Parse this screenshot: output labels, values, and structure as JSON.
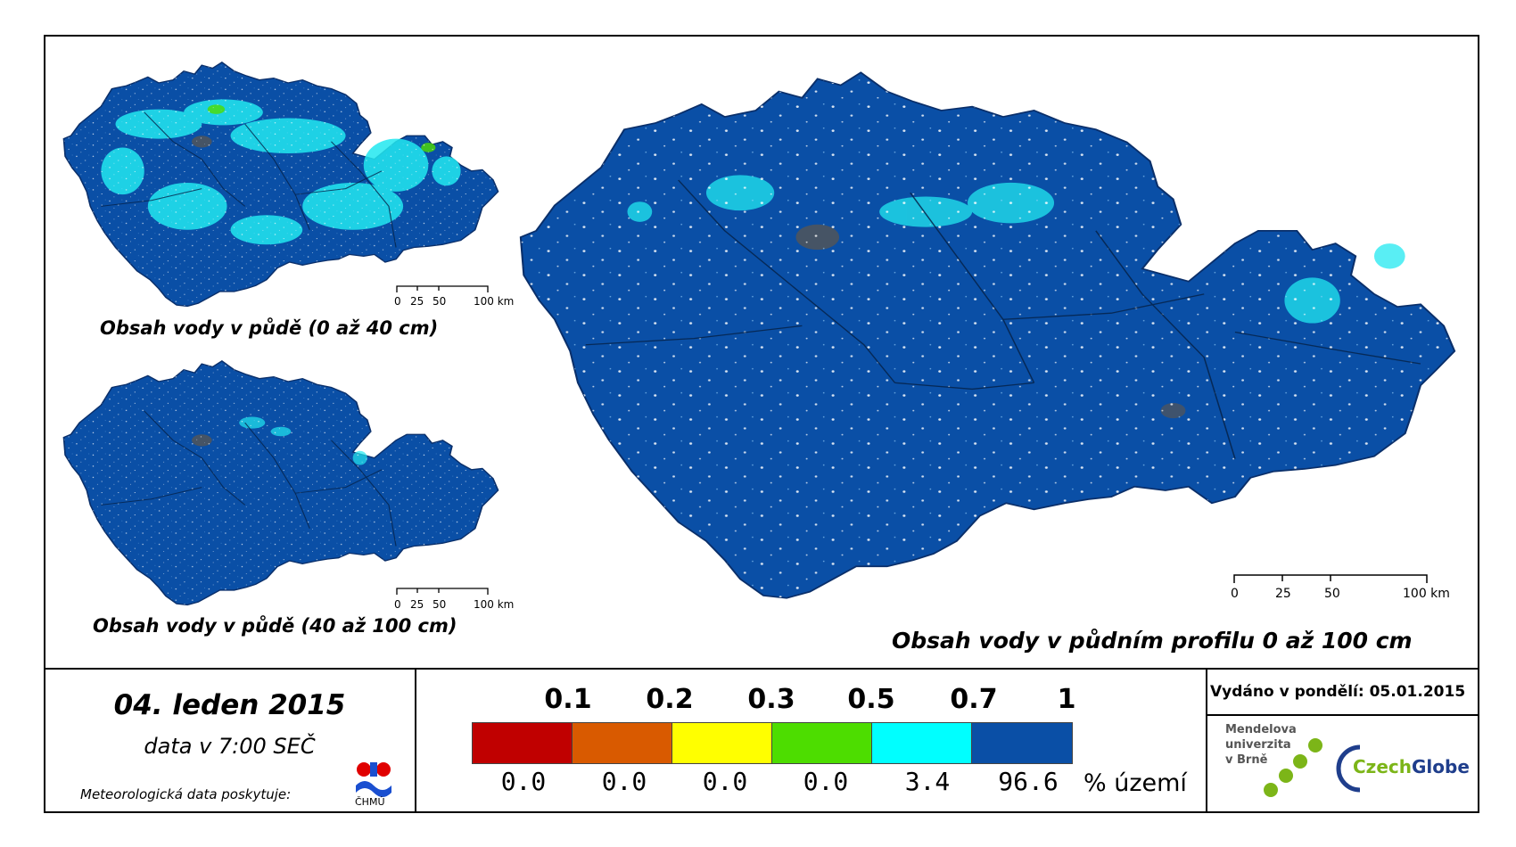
{
  "maps": {
    "top_small": {
      "title": "Obsah vody v půdě (0 až 40 cm)"
    },
    "bottom_small": {
      "title": "Obsah vody v půdě (40 až 100 cm)"
    },
    "main": {
      "title": "Obsah vody v půdním profilu 0 až 100 cm"
    }
  },
  "scale_bar": {
    "labels": [
      "0",
      "25",
      "50",
      "100 km"
    ]
  },
  "date": {
    "title": "04. leden 2015",
    "subtitle": "data v 7:00 SEČ"
  },
  "provider": {
    "label": "Meteorologická data poskytuje:",
    "logo_text": "ČHMÚ"
  },
  "legend": {
    "thresholds": [
      "0.1",
      "0.2",
      "0.3",
      "0.5",
      "0.7",
      "1"
    ],
    "colors": [
      "#c00000",
      "#d95a00",
      "#ffff00",
      "#4ddd00",
      "#00ffff",
      "#0a4fa6"
    ],
    "percentages": [
      "0.0",
      "0.0",
      "0.0",
      "0.0",
      "3.4",
      "96.6"
    ],
    "unit": "% území"
  },
  "issued": {
    "label": "Vydáno v pondělí: 05.01.2015"
  },
  "logos": {
    "mendel": [
      "Mendelova",
      "univerzita",
      "v Brně"
    ],
    "czechglobe_a": "Czech",
    "czechglobe_b": "Globe"
  },
  "colors": {
    "map_fill": "#0a4fa6",
    "wet_patch": "#22e8f0",
    "urban": "#555555"
  }
}
